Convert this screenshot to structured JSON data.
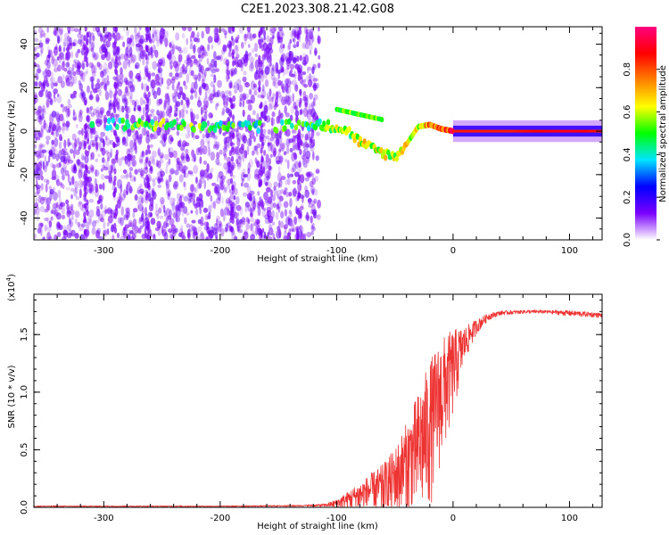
{
  "figure": {
    "title": "C2E1.2023.308.21.42.G08"
  },
  "colorbar": {
    "label": "Normalized spectral amplitude",
    "ticks": [
      "0.0",
      "0.2",
      "0.4",
      "0.6",
      "0.8"
    ],
    "range": [
      0,
      1
    ],
    "colormap": [
      "#ffffff",
      "#7a00ff",
      "#0000ff",
      "#00e5ff",
      "#00ff00",
      "#ffff00",
      "#ff8000",
      "#ff0000",
      "#ff0080"
    ]
  },
  "chart_data": [
    {
      "type": "heatmap",
      "subtype": "spectrogram",
      "title": "",
      "xlabel": "Height of straight line (km)",
      "ylabel": "Frequency (Hz)",
      "xlim": [
        -360,
        128
      ],
      "ylim": [
        -50,
        48
      ],
      "x_ticks": [
        "-300",
        "-200",
        "-100",
        "0",
        "100"
      ],
      "y_ticks": [
        "-40",
        "-20",
        "0",
        "20",
        "40"
      ],
      "noise_region_x": [
        -360,
        -115
      ],
      "signal_track": {
        "x": [
          -310,
          -240,
          -200,
          -160,
          -120,
          -100,
          -90,
          -80,
          -70,
          -60,
          -50,
          -40,
          -30,
          -20,
          -10,
          0,
          50,
          100,
          128
        ],
        "y": [
          3,
          3,
          2,
          2,
          3,
          2,
          0,
          -5,
          -8,
          -10,
          -12,
          -6,
          2,
          3,
          1,
          0,
          0,
          0,
          0
        ],
        "amplitude": [
          0.45,
          0.55,
          0.45,
          0.45,
          0.5,
          0.55,
          0.5,
          0.6,
          0.6,
          0.6,
          0.55,
          0.6,
          0.6,
          0.75,
          0.8,
          0.85,
          0.85,
          0.9,
          0.85
        ]
      }
    },
    {
      "type": "line",
      "title": "",
      "xlabel": "Height of straight line (km)",
      "ylabel": "SNR (10 * v/v)",
      "scale_note": "(x10",
      "scale_exp": "4",
      "scale_close": ")",
      "xlim": [
        -360,
        128
      ],
      "ylim": [
        0,
        1.85
      ],
      "x_ticks": [
        "-300",
        "-200",
        "-100",
        "0",
        "100"
      ],
      "y_ticks": [
        "0.0",
        "0.5",
        "1.0",
        "1.5"
      ],
      "color": "#ee3333",
      "series": [
        {
          "x": [
            -360,
            -300,
            -200,
            -130,
            -110,
            -100,
            -90,
            -80,
            -70,
            -60,
            -50,
            -40,
            -30,
            -20,
            -10,
            0,
            10,
            20,
            30,
            40,
            60,
            80,
            100,
            128
          ],
          "y": [
            0.01,
            0.01,
            0.01,
            0.015,
            0.02,
            0.04,
            0.08,
            0.12,
            0.16,
            0.2,
            0.28,
            0.42,
            0.58,
            0.78,
            1.05,
            1.25,
            1.45,
            1.58,
            1.66,
            1.69,
            1.7,
            1.7,
            1.69,
            1.67
          ],
          "noise_amp": [
            0.003,
            0.003,
            0.003,
            0.004,
            0.01,
            0.03,
            0.06,
            0.1,
            0.14,
            0.18,
            0.24,
            0.32,
            0.42,
            0.5,
            0.42,
            0.3,
            0.12,
            0.05,
            0.025,
            0.015,
            0.012,
            0.012,
            0.02,
            0.015
          ]
        }
      ]
    }
  ]
}
